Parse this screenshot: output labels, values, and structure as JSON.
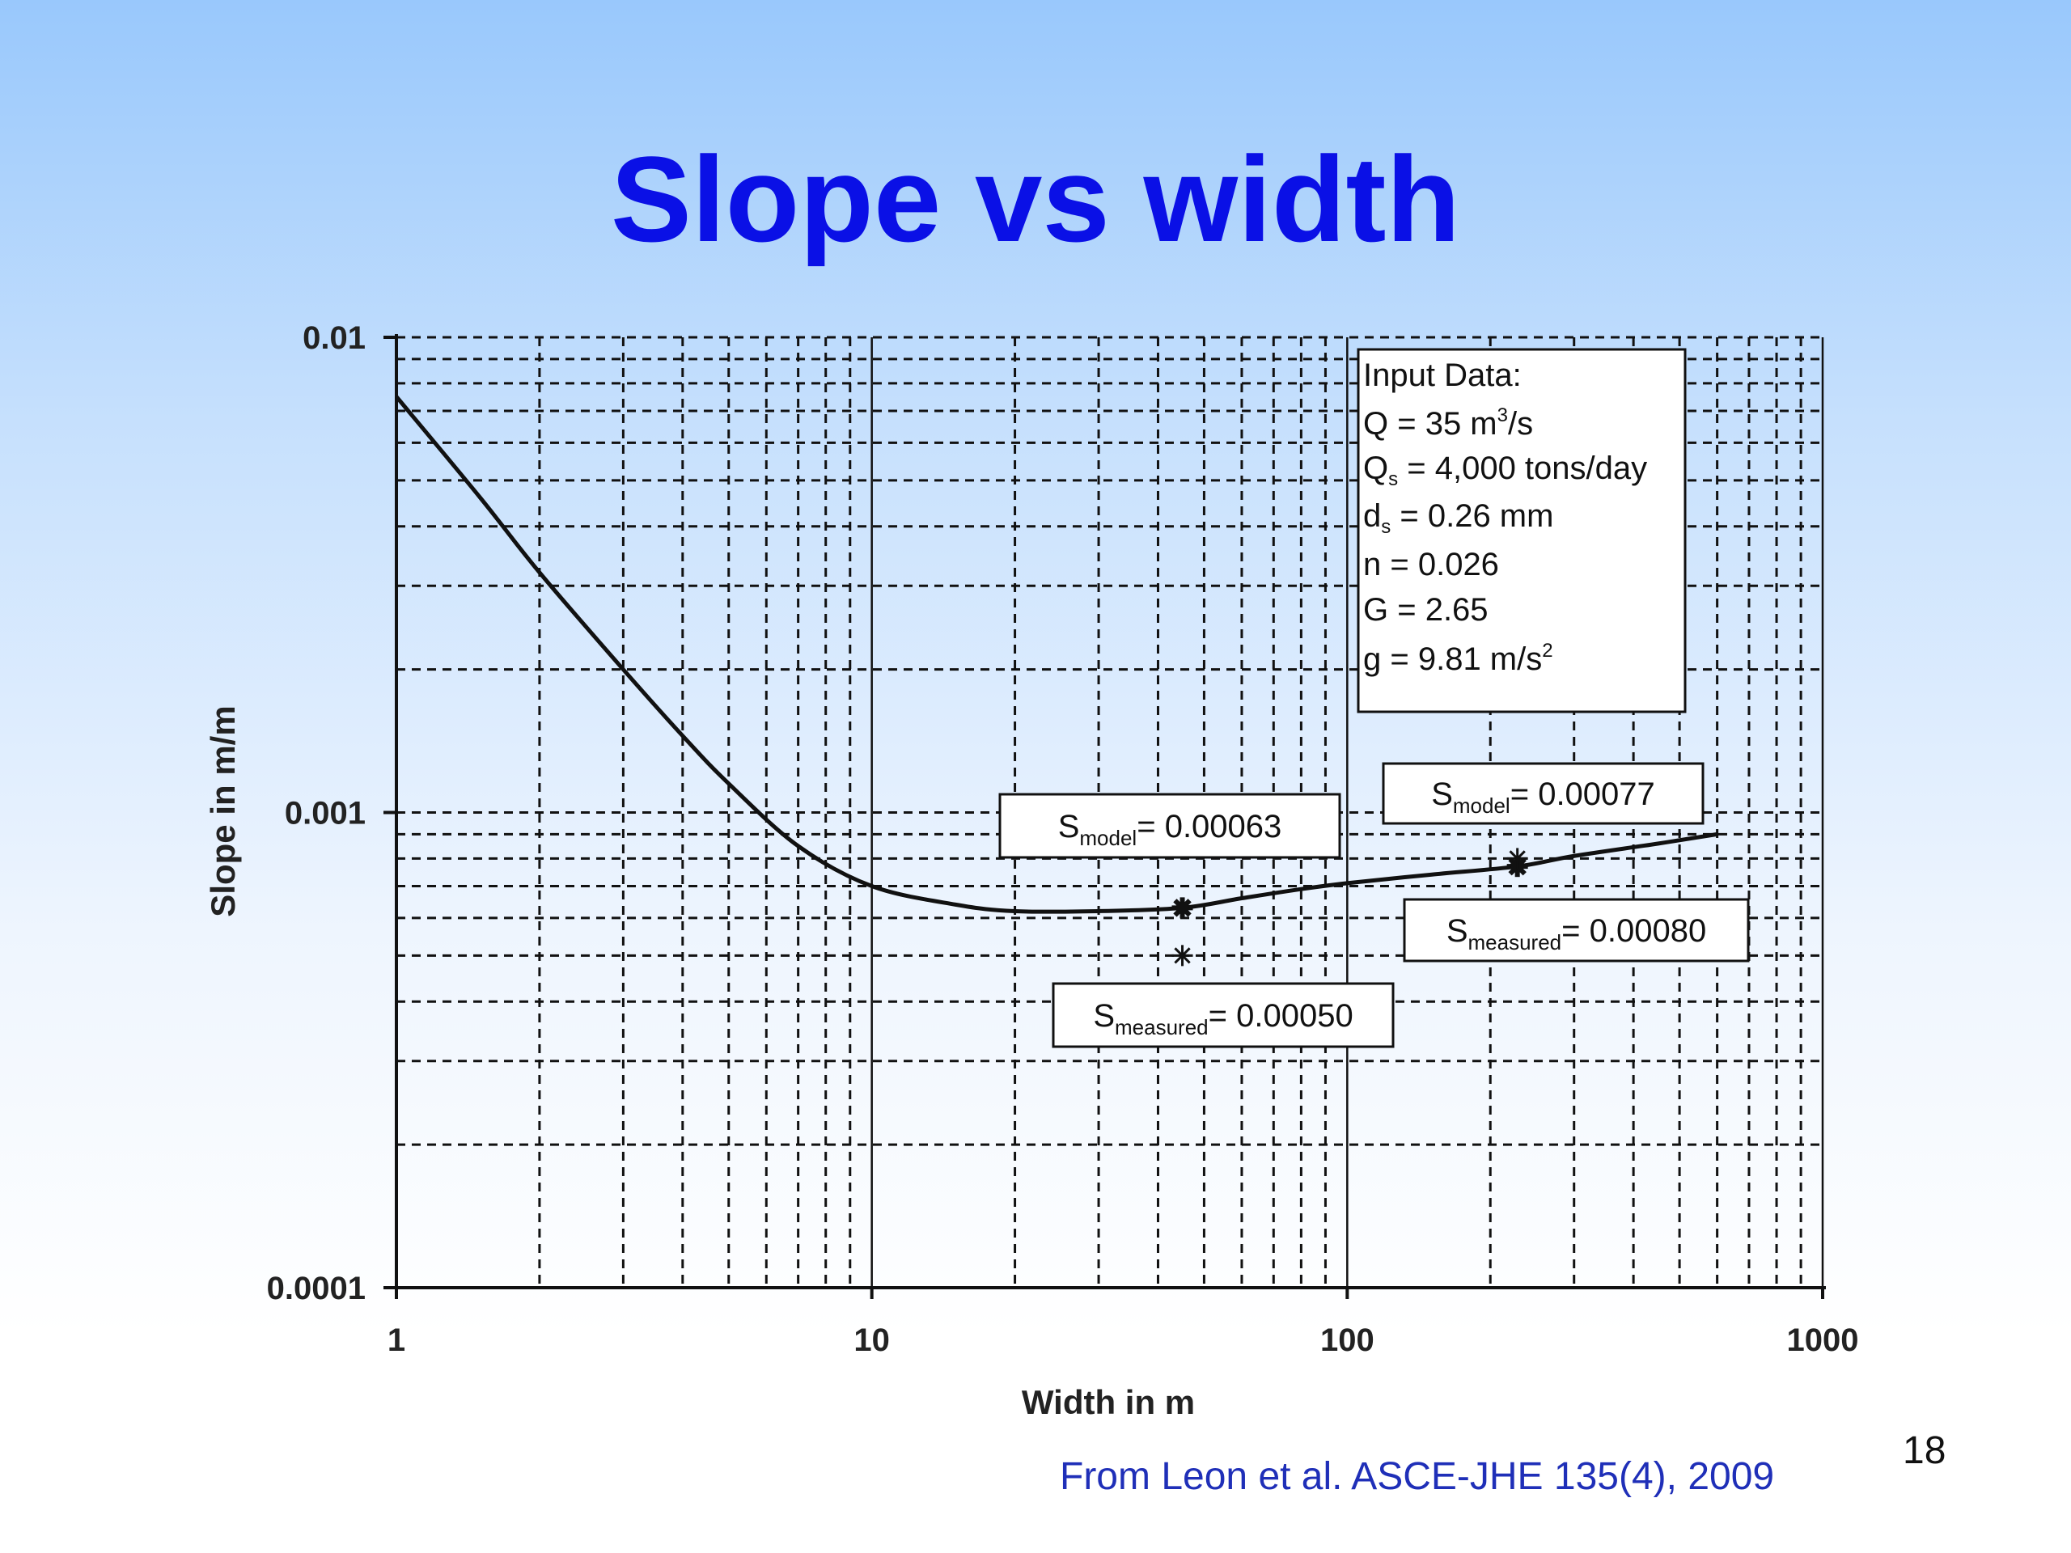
{
  "slide": {
    "title": "Slope vs width",
    "citation": "From Leon et al. ASCE-JHE 135(4), 2009",
    "page_number": "18"
  },
  "chart_data": {
    "type": "line",
    "title": "",
    "xlabel": "Width in m",
    "ylabel": "Slope in m/m",
    "x_scale": "log",
    "y_scale": "log",
    "xlim": [
      1,
      1000
    ],
    "ylim": [
      0.0001,
      0.01
    ],
    "x_ticks": [
      "1",
      "10",
      "100",
      "1000"
    ],
    "y_ticks": [
      "0.0001",
      "0.001",
      "0.01"
    ],
    "grid": true,
    "series": [
      {
        "x": [
          1,
          1.5,
          2,
          3,
          4,
          5,
          7,
          10,
          15,
          20,
          30,
          45,
          60,
          80,
          100,
          150,
          228,
          300,
          450,
          600
        ],
        "y": [
          0.0075,
          0.0046,
          0.0032,
          0.002,
          0.00145,
          0.00115,
          0.00085,
          0.0007,
          0.00064,
          0.00062,
          0.00062,
          0.00063,
          0.00066,
          0.00069,
          0.00071,
          0.00074,
          0.00077,
          0.00081,
          0.00086,
          0.0009
        ]
      }
    ],
    "points": [
      {
        "kind": "model",
        "x": 45,
        "y": 0.00063
      },
      {
        "kind": "measured",
        "x": 45,
        "y": 0.0005
      },
      {
        "kind": "model",
        "x": 228,
        "y": 0.00077
      },
      {
        "kind": "measured",
        "x": 228,
        "y": 0.0008
      }
    ],
    "annotations": [
      {
        "main": "S",
        "sub": "model",
        "value": "= 0.00063"
      },
      {
        "main": "S",
        "sub": "measured",
        "value": "= 0.00050"
      },
      {
        "main": "S",
        "sub": "model",
        "value": "= 0.00077"
      },
      {
        "main": "S",
        "sub": "measured",
        "value": "= 0.00080"
      }
    ],
    "input_box": {
      "heading": "Input Data:",
      "lines": [
        {
          "pre": "Q = 35 m",
          "sup": "3",
          "sub": "",
          "post": "/s"
        },
        {
          "pre": "Q",
          "sup": "",
          "sub": "s",
          "post": " = 4,000 tons/day"
        },
        {
          "pre": "d",
          "sup": "",
          "sub": "s",
          "post": " = 0.26 mm"
        },
        {
          "pre": "n = 0.026",
          "sup": "",
          "sub": "",
          "post": ""
        },
        {
          "pre": "G = 2.65",
          "sup": "",
          "sub": "",
          "post": ""
        },
        {
          "pre": "g = 9.81 m/s",
          "sup": "2",
          "sub": "",
          "post": ""
        }
      ]
    }
  }
}
